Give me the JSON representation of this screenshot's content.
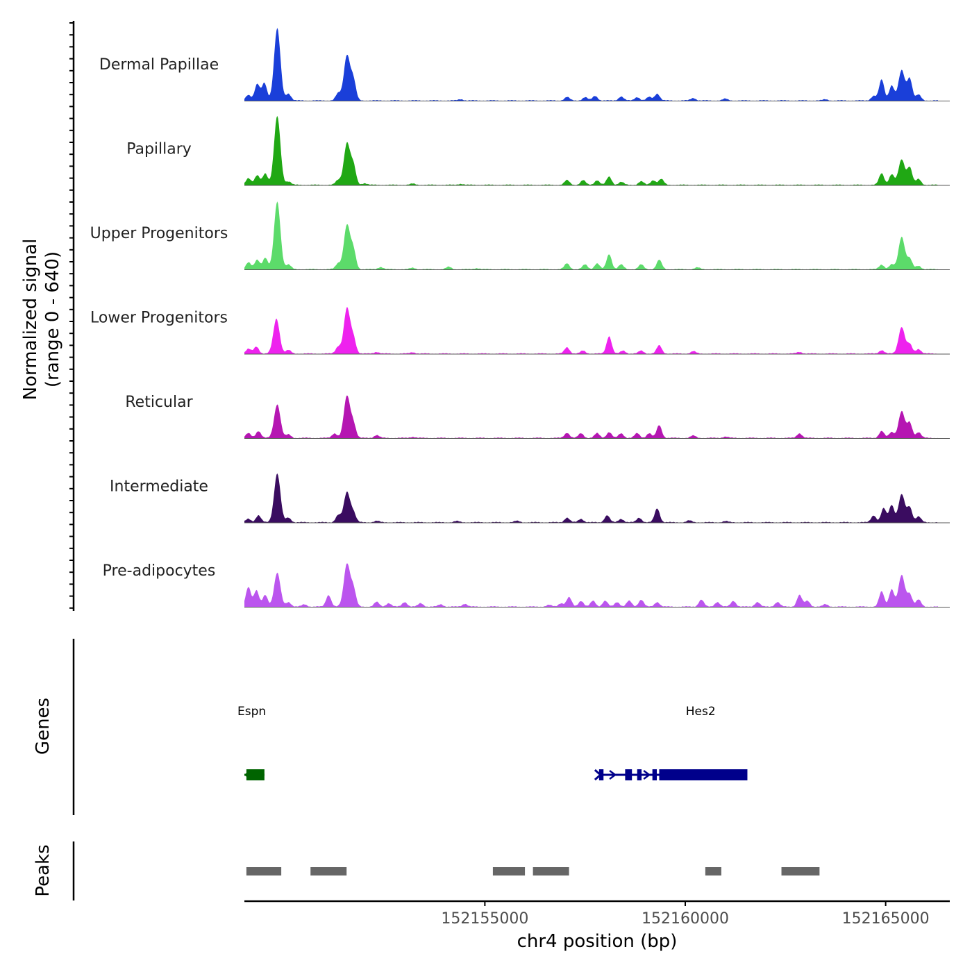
{
  "chart_data": {
    "type": "area",
    "title": "",
    "ylabel_line1": "Normalized signal",
    "ylabel_line2": "(range 0 - 640)",
    "xlabel": "chr4 position (bp)",
    "ylim": [
      0,
      640
    ],
    "xlim": [
      152149000,
      152166600
    ],
    "x_ticks": [
      152155000,
      152160000,
      152165000
    ],
    "x_tick_labels": [
      "152155000",
      "152160000",
      "152165000"
    ],
    "tracks": [
      {
        "name": "Dermal Papillae",
        "color": "#1a3fd9",
        "peaks": [
          [
            152149100,
            50
          ],
          [
            152149320,
            140
          ],
          [
            152149500,
            150
          ],
          [
            152149820,
            620
          ],
          [
            152150100,
            60
          ],
          [
            152151340,
            60
          ],
          [
            152151560,
            390
          ],
          [
            152151720,
            170
          ],
          [
            152154400,
            12
          ],
          [
            152157050,
            30
          ],
          [
            152157500,
            28
          ],
          [
            152157750,
            40
          ],
          [
            152158400,
            35
          ],
          [
            152158800,
            30
          ],
          [
            152159100,
            30
          ],
          [
            152159300,
            60
          ],
          [
            152160200,
            22
          ],
          [
            152161000,
            15
          ],
          [
            152163500,
            10
          ],
          [
            152164700,
            40
          ],
          [
            152164900,
            180
          ],
          [
            152165150,
            130
          ],
          [
            152165400,
            260
          ],
          [
            152165600,
            190
          ],
          [
            152165820,
            50
          ]
        ]
      },
      {
        "name": "Papillary",
        "color": "#20a814",
        "peaks": [
          [
            152149100,
            60
          ],
          [
            152149320,
            80
          ],
          [
            152149520,
            100
          ],
          [
            152149820,
            590
          ],
          [
            152150100,
            30
          ],
          [
            152151340,
            40
          ],
          [
            152151560,
            360
          ],
          [
            152151720,
            160
          ],
          [
            152152000,
            15
          ],
          [
            152153200,
            10
          ],
          [
            152154400,
            10
          ],
          [
            152157050,
            40
          ],
          [
            152157450,
            40
          ],
          [
            152157800,
            40
          ],
          [
            152158100,
            70
          ],
          [
            152158400,
            25
          ],
          [
            152158900,
            30
          ],
          [
            152159200,
            40
          ],
          [
            152159400,
            50
          ],
          [
            152164900,
            100
          ],
          [
            152165150,
            90
          ],
          [
            152165400,
            220
          ],
          [
            152165600,
            150
          ],
          [
            152165820,
            50
          ]
        ]
      },
      {
        "name": "Upper Progenitors",
        "color": "#5cdb6a",
        "peaks": [
          [
            152149100,
            60
          ],
          [
            152149320,
            80
          ],
          [
            152149520,
            100
          ],
          [
            152149820,
            580
          ],
          [
            152150100,
            40
          ],
          [
            152151340,
            50
          ],
          [
            152151560,
            380
          ],
          [
            152151720,
            160
          ],
          [
            152152400,
            20
          ],
          [
            152153200,
            12
          ],
          [
            152154100,
            20
          ],
          [
            152154800,
            10
          ],
          [
            152157050,
            50
          ],
          [
            152157500,
            40
          ],
          [
            152157800,
            50
          ],
          [
            152158100,
            130
          ],
          [
            152158400,
            40
          ],
          [
            152158900,
            40
          ],
          [
            152159350,
            80
          ],
          [
            152160300,
            15
          ],
          [
            152164900,
            40
          ],
          [
            152165150,
            40
          ],
          [
            152165400,
            280
          ],
          [
            152165600,
            90
          ],
          [
            152165820,
            30
          ]
        ]
      },
      {
        "name": "Lower Progenitors",
        "color": "#ee22ee",
        "peaks": [
          [
            152149100,
            40
          ],
          [
            152149300,
            60
          ],
          [
            152149800,
            300
          ],
          [
            152150100,
            30
          ],
          [
            152151340,
            60
          ],
          [
            152151560,
            390
          ],
          [
            152151720,
            130
          ],
          [
            152152300,
            15
          ],
          [
            152153200,
            12
          ],
          [
            152157050,
            55
          ],
          [
            152157450,
            25
          ],
          [
            152158100,
            150
          ],
          [
            152158450,
            25
          ],
          [
            152158900,
            25
          ],
          [
            152159350,
            70
          ],
          [
            152160200,
            20
          ],
          [
            152162850,
            15
          ],
          [
            152164900,
            30
          ],
          [
            152165400,
            230
          ],
          [
            152165600,
            80
          ],
          [
            152165820,
            40
          ]
        ]
      },
      {
        "name": "Reticular",
        "color": "#b516b2",
        "peaks": [
          [
            152149100,
            40
          ],
          [
            152149350,
            60
          ],
          [
            152149820,
            290
          ],
          [
            152150100,
            30
          ],
          [
            152151250,
            40
          ],
          [
            152151560,
            360
          ],
          [
            152151720,
            120
          ],
          [
            152152300,
            25
          ],
          [
            152153200,
            10
          ],
          [
            152157050,
            45
          ],
          [
            152157400,
            40
          ],
          [
            152157800,
            40
          ],
          [
            152158100,
            50
          ],
          [
            152158400,
            40
          ],
          [
            152158800,
            40
          ],
          [
            152159100,
            40
          ],
          [
            152159350,
            110
          ],
          [
            152160200,
            20
          ],
          [
            152161000,
            12
          ],
          [
            152162850,
            40
          ],
          [
            152164900,
            60
          ],
          [
            152165150,
            50
          ],
          [
            152165400,
            230
          ],
          [
            152165600,
            130
          ],
          [
            152165820,
            50
          ]
        ]
      },
      {
        "name": "Intermediate",
        "color": "#3a0c60",
        "peaks": [
          [
            152149100,
            30
          ],
          [
            152149350,
            60
          ],
          [
            152149820,
            420
          ],
          [
            152150100,
            40
          ],
          [
            152151340,
            60
          ],
          [
            152151560,
            260
          ],
          [
            152151720,
            80
          ],
          [
            152152300,
            12
          ],
          [
            152154300,
            10
          ],
          [
            152155800,
            12
          ],
          [
            152157050,
            40
          ],
          [
            152157400,
            30
          ],
          [
            152158050,
            60
          ],
          [
            152158400,
            30
          ],
          [
            152158850,
            40
          ],
          [
            152159300,
            120
          ],
          [
            152160100,
            15
          ],
          [
            152161000,
            10
          ],
          [
            152164700,
            60
          ],
          [
            152164950,
            120
          ],
          [
            152165150,
            150
          ],
          [
            152165400,
            240
          ],
          [
            152165600,
            130
          ],
          [
            152165820,
            50
          ]
        ]
      },
      {
        "name": "Pre-adipocytes",
        "color": "#bb55ee",
        "peaks": [
          [
            152149100,
            170
          ],
          [
            152149300,
            140
          ],
          [
            152149520,
            100
          ],
          [
            152149820,
            290
          ],
          [
            152150100,
            40
          ],
          [
            152150500,
            20
          ],
          [
            152151100,
            100
          ],
          [
            152151560,
            370
          ],
          [
            152151720,
            150
          ],
          [
            152152300,
            40
          ],
          [
            152152600,
            30
          ],
          [
            152153000,
            40
          ],
          [
            152153400,
            30
          ],
          [
            152153900,
            20
          ],
          [
            152154500,
            25
          ],
          [
            152156600,
            15
          ],
          [
            152156900,
            30
          ],
          [
            152157100,
            80
          ],
          [
            152157400,
            50
          ],
          [
            152157700,
            50
          ],
          [
            152158000,
            50
          ],
          [
            152158300,
            40
          ],
          [
            152158600,
            50
          ],
          [
            152158900,
            60
          ],
          [
            152159300,
            40
          ],
          [
            152160400,
            60
          ],
          [
            152160800,
            40
          ],
          [
            152161200,
            50
          ],
          [
            152161800,
            40
          ],
          [
            152162300,
            40
          ],
          [
            152162850,
            100
          ],
          [
            152163050,
            50
          ],
          [
            152163500,
            20
          ],
          [
            152164900,
            130
          ],
          [
            152165150,
            150
          ],
          [
            152165400,
            270
          ],
          [
            152165600,
            110
          ],
          [
            152165820,
            60
          ]
        ]
      }
    ],
    "genes": [
      {
        "name": "Espn",
        "color": "#006400",
        "start": 152149000,
        "end": 152149500,
        "strand": "-",
        "exons": [
          [
            152149050,
            152149500
          ]
        ]
      },
      {
        "name": "Hes2",
        "color": "#00008b",
        "start": 152157850,
        "end": 152160250,
        "strand": "+",
        "exons": [
          [
            152157850,
            152157960
          ],
          [
            152158500,
            152158670
          ],
          [
            152158800,
            152158910
          ],
          [
            152159180,
            152159290
          ],
          [
            152159350,
            152161550
          ]
        ]
      }
    ],
    "peaks_track": [
      [
        152149050,
        152149920
      ],
      [
        152150650,
        152151550
      ],
      [
        152155200,
        152156000
      ],
      [
        152156200,
        152157100
      ],
      [
        152160500,
        152160900
      ],
      [
        152162400,
        152163350
      ]
    ],
    "panels": {
      "genes_label": "Genes",
      "peaks_label": "Peaks"
    }
  }
}
